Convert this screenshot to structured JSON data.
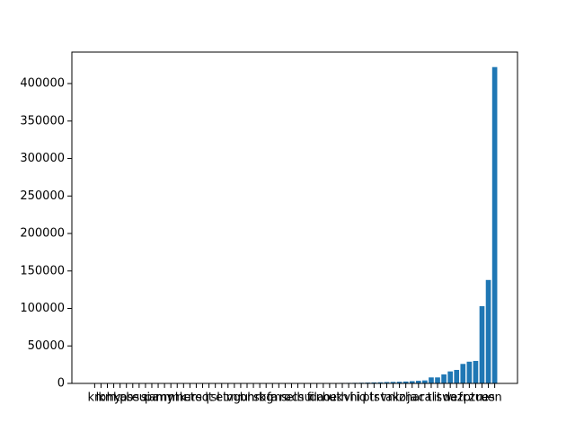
{
  "chart_data": {
    "type": "bar",
    "categories": [
      "kn",
      "lo",
      "km",
      "hy",
      "ka",
      "ps",
      "bs",
      "eu",
      "si",
      "pa",
      "am",
      "my",
      "ml",
      "mk",
      "ne",
      "ur",
      "te",
      "sq",
      "lt",
      "sl",
      "et",
      "lv",
      "mr",
      "gu",
      "bn",
      "hr",
      "sk",
      "bg",
      "fa",
      "ms",
      "ro",
      "el",
      "cs",
      "hu",
      "fi",
      "da",
      "no",
      "he",
      "uk",
      "th",
      "vi",
      "hi",
      "id",
      "pl",
      "tr",
      "sv",
      "ta",
      "nl",
      "ko",
      "zh",
      "ja",
      "ar",
      "ca",
      "tl",
      "it",
      "sw",
      "de",
      "az",
      "fr",
      "pt",
      "zu",
      "ru",
      "es",
      "en"
    ],
    "values": [
      20,
      30,
      40,
      50,
      60,
      70,
      80,
      90,
      100,
      110,
      120,
      130,
      140,
      150,
      160,
      170,
      180,
      190,
      200,
      210,
      220,
      230,
      240,
      250,
      260,
      280,
      300,
      320,
      340,
      360,
      380,
      400,
      420,
      440,
      460,
      480,
      500,
      550,
      600,
      650,
      700,
      800,
      900,
      1100,
      1300,
      1500,
      1800,
      2000,
      2200,
      2500,
      3000,
      3500,
      4000,
      8000,
      8000,
      12000,
      16000,
      18000,
      26000,
      29000,
      30000,
      103000,
      138000,
      422000
    ],
    "color": "#1f77b4",
    "ylim": [
      0,
      442000
    ],
    "yticks": [
      0,
      50000,
      100000,
      150000,
      200000,
      250000,
      300000,
      350000,
      400000
    ]
  }
}
